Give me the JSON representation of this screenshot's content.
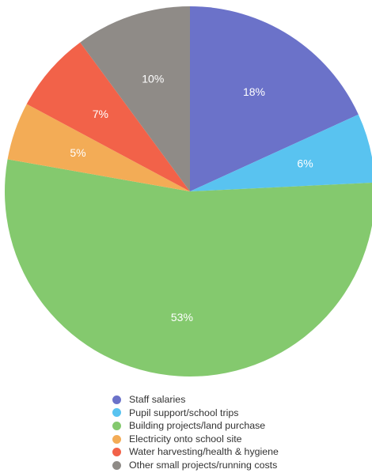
{
  "chart_data": {
    "type": "pie",
    "title": "",
    "start_angle_deg": 0,
    "direction": "clockwise",
    "legend_position": "bottom",
    "slices": [
      {
        "label": "Staff salaries",
        "value": 18,
        "display": "18%",
        "color": "#6b72c9"
      },
      {
        "label": "Pupil support/school trips",
        "value": 6,
        "display": "6%",
        "color": "#59c3f0"
      },
      {
        "label": "Building projects/land purchase",
        "value": 53,
        "display": "53%",
        "color": "#84c96e"
      },
      {
        "label": "Electricity onto school site",
        "value": 5,
        "display": "5%",
        "color": "#f3ac56"
      },
      {
        "label": "Water harvesting/health & hygiene",
        "value": 7,
        "display": "7%",
        "color": "#f26249"
      },
      {
        "label": "Other small projects/running costs",
        "value": 10,
        "display": "10%",
        "color": "#8f8b87"
      }
    ]
  }
}
